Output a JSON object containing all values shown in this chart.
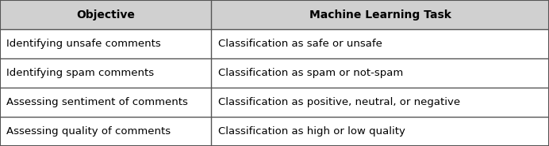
{
  "header": [
    "Objective",
    "Machine Learning Task"
  ],
  "rows": [
    [
      "Identifying unsafe comments",
      "Classification as safe or unsafe"
    ],
    [
      "Identifying spam comments",
      "Classification as spam or not-spam"
    ],
    [
      "Assessing sentiment of comments",
      "Classification as positive, neutral, or negative"
    ],
    [
      "Assessing quality of comments",
      "Classification as high or low quality"
    ]
  ],
  "header_bg": "#d0d0d0",
  "border_color": "#555555",
  "header_font_size": 10.0,
  "row_font_size": 9.5,
  "col_split": 0.385,
  "figsize": [
    6.92,
    1.85
  ],
  "dpi": 100
}
